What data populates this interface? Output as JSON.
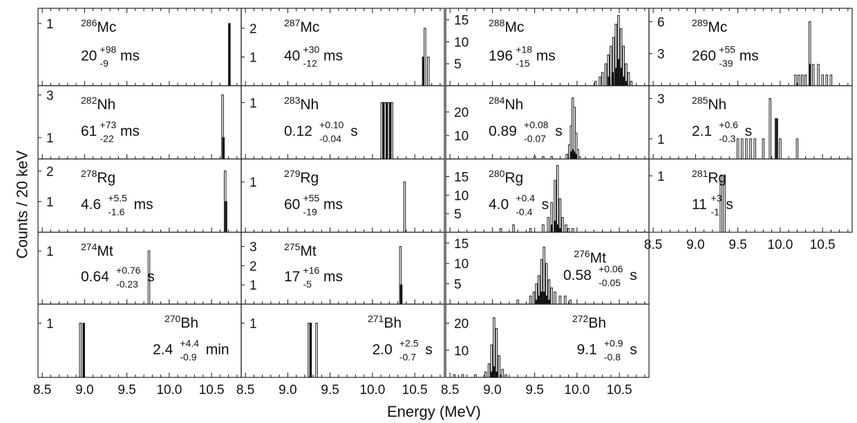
{
  "figure": {
    "ylabel": "Counts / 20 keV",
    "xlabel": "Energy (MeV)"
  },
  "chart_data": {
    "type": "bar",
    "xlim": [
      8.45,
      10.85
    ],
    "xticks": [
      "8.5",
      "9.0",
      "9.5",
      "10.0",
      "10.5"
    ],
    "ylabel": "Counts / 20 keV",
    "xlabel": "Energy (MeV)",
    "grid": false,
    "panels": [
      {
        "id": "286Mc",
        "row": 0,
        "col": 0,
        "mass": "286",
        "element": "Mc",
        "value": "20",
        "plus": "+98",
        "minus": "-9",
        "unit": "ms",
        "labelPos": "left",
        "ymax": 1.2,
        "yticks": [
          1
        ],
        "open": [],
        "filled": [
          [
            10.71,
            1
          ]
        ]
      },
      {
        "id": "287Mc",
        "row": 0,
        "col": 1,
        "mass": "287",
        "element": "Mc",
        "value": "40",
        "plus": "+30",
        "minus": "-12",
        "unit": "ms",
        "labelPos": "left",
        "ymax": 2.6,
        "yticks": [
          1,
          2
        ],
        "open": [
          [
            10.62,
            2
          ],
          [
            10.66,
            1
          ]
        ],
        "filled": [
          [
            10.6,
            1
          ]
        ]
      },
      {
        "id": "288Mc",
        "row": 0,
        "col": 2,
        "mass": "288Mc",
        "element": "Mc",
        "value": "196",
        "plus": "+18",
        "minus": "-15",
        "unit": "ms",
        "labelPos": "left",
        "ymax": 17,
        "yticks": [
          5,
          10,
          15
        ],
        "open": [
          [
            10.22,
            1
          ],
          [
            10.27,
            2
          ],
          [
            10.3,
            3
          ],
          [
            10.34,
            5
          ],
          [
            10.37,
            7
          ],
          [
            10.4,
            9
          ],
          [
            10.43,
            11
          ],
          [
            10.46,
            14
          ],
          [
            10.49,
            16
          ],
          [
            10.52,
            13
          ],
          [
            10.55,
            9
          ],
          [
            10.58,
            5
          ],
          [
            10.61,
            3
          ],
          [
            10.64,
            1
          ]
        ],
        "filled": [
          [
            10.38,
            2
          ],
          [
            10.42,
            3
          ],
          [
            10.46,
            4
          ],
          [
            10.49,
            6
          ],
          [
            10.52,
            4
          ],
          [
            10.55,
            2
          ],
          [
            10.58,
            1
          ]
        ]
      },
      {
        "id": "289Mc",
        "row": 0,
        "col": 3,
        "mass": "289",
        "element": "Mc",
        "value": "260",
        "plus": "+55",
        "minus": "-39",
        "unit": "ms",
        "labelPos": "left",
        "ymax": 7,
        "yticks": [
          3,
          6
        ],
        "open": [
          [
            10.18,
            1
          ],
          [
            10.22,
            1
          ],
          [
            10.26,
            1
          ],
          [
            10.3,
            1
          ],
          [
            10.35,
            6
          ],
          [
            10.39,
            2
          ],
          [
            10.45,
            2
          ],
          [
            10.5,
            1
          ],
          [
            10.55,
            1
          ],
          [
            10.6,
            1
          ]
        ],
        "filled": [
          [
            10.35,
            2
          ]
        ]
      },
      {
        "id": "282Nh",
        "row": 1,
        "col": 0,
        "mass": "282",
        "element": "Nh",
        "value": "61",
        "plus": "+73",
        "minus": "-22",
        "unit": "ms",
        "labelPos": "left",
        "ymax": 3.3,
        "yticks": [
          1,
          3
        ],
        "open": [
          [
            10.63,
            3
          ]
        ],
        "filled": [
          [
            10.64,
            1
          ]
        ]
      },
      {
        "id": "283Nh",
        "row": 1,
        "col": 1,
        "mass": "283",
        "element": "Nh",
        "value": "0.12",
        "plus": "+0.10",
        "minus": "-0.04",
        "unit": "s",
        "labelPos": "left",
        "ymax": 1.25,
        "yticks": [
          1
        ],
        "open": [
          [
            10.11,
            1
          ],
          [
            10.15,
            1
          ],
          [
            10.19,
            1
          ],
          [
            10.23,
            1
          ]
        ],
        "filled": [
          [
            10.13,
            1
          ],
          [
            10.17,
            1
          ],
          [
            10.21,
            1
          ]
        ]
      },
      {
        "id": "284Nh",
        "row": 1,
        "col": 2,
        "mass": "284",
        "element": "Nh",
        "value": "0.89",
        "plus": "+0.08",
        "minus": "-0.07",
        "unit": "s",
        "labelPos": "left",
        "ymax": 30,
        "yticks": [
          10,
          20
        ],
        "open": [
          [
            9.5,
            1
          ],
          [
            9.6,
            1
          ],
          [
            9.7,
            1
          ],
          [
            9.88,
            2
          ],
          [
            9.91,
            6
          ],
          [
            9.93,
            14
          ],
          [
            9.95,
            26
          ],
          [
            9.97,
            22
          ],
          [
            9.99,
            11
          ],
          [
            10.01,
            4
          ],
          [
            10.03,
            1
          ]
        ],
        "filled": [
          [
            9.93,
            3
          ],
          [
            9.95,
            4
          ],
          [
            9.97,
            3
          ],
          [
            9.99,
            2
          ]
        ]
      },
      {
        "id": "285Nh",
        "row": 1,
        "col": 3,
        "mass": "285",
        "element": "Nh",
        "value": "2.1",
        "plus": "+0.6",
        "minus": "-0.3",
        "unit": "s",
        "labelPos": "left",
        "ymax": 3.5,
        "yticks": [
          1,
          3
        ],
        "open": [
          [
            9.5,
            1
          ],
          [
            9.55,
            1
          ],
          [
            9.6,
            1
          ],
          [
            9.65,
            1
          ],
          [
            9.7,
            1
          ],
          [
            9.8,
            1
          ],
          [
            9.88,
            3
          ],
          [
            9.95,
            2
          ],
          [
            10.0,
            1
          ],
          [
            10.2,
            1
          ]
        ],
        "filled": [
          [
            9.96,
            2
          ]
        ]
      },
      {
        "id": "278Rg",
        "row": 2,
        "col": 0,
        "mass": "278",
        "element": "Rg",
        "value": "4.6",
        "plus": "+5.5",
        "minus": "-1.6",
        "unit": "ms",
        "labelPos": "left",
        "ymax": 2.3,
        "yticks": [
          1,
          2
        ],
        "open": [
          [
            10.66,
            2
          ]
        ],
        "filled": [
          [
            10.67,
            1
          ]
        ]
      },
      {
        "id": "279Rg",
        "row": 2,
        "col": 1,
        "mass": "279",
        "element": "Rg",
        "value": "60",
        "plus": "+55",
        "minus": "-19",
        "unit": "ms",
        "labelPos": "left",
        "ymax": 1.4,
        "yticks": [
          1
        ],
        "open": [
          [
            10.38,
            1
          ]
        ],
        "filled": []
      },
      {
        "id": "280Rg",
        "row": 2,
        "col": 2,
        "mass": "280",
        "element": "Rg",
        "value": "4.0",
        "plus": "+0.4",
        "minus": "-0.4",
        "unit": "s",
        "labelPos": "left",
        "ymax": 19,
        "yticks": [
          5,
          10,
          15
        ],
        "open": [
          [
            9.1,
            1
          ],
          [
            9.25,
            2
          ],
          [
            9.45,
            1
          ],
          [
            9.6,
            2
          ],
          [
            9.66,
            4
          ],
          [
            9.7,
            8
          ],
          [
            9.74,
            14
          ],
          [
            9.77,
            18
          ],
          [
            9.8,
            9
          ],
          [
            9.83,
            4
          ],
          [
            9.87,
            2
          ],
          [
            9.9,
            1
          ],
          [
            9.95,
            1
          ]
        ],
        "filled": [
          [
            9.7,
            2
          ],
          [
            9.74,
            3
          ],
          [
            9.77,
            2
          ],
          [
            9.8,
            1
          ]
        ]
      },
      {
        "id": "281Rg",
        "row": 2,
        "col": 3,
        "mass": "281",
        "element": "Rg",
        "value": "11",
        "plus": "+3",
        "minus": "-1",
        "unit": "s",
        "labelPos": "left",
        "ymax": 1.25,
        "yticks": [
          1
        ],
        "open": [
          [
            9.3,
            1
          ],
          [
            9.34,
            1
          ]
        ],
        "filled": []
      },
      {
        "id": "274Mt",
        "row": 3,
        "col": 0,
        "mass": "274",
        "element": "Mt",
        "value": "0.64",
        "plus": "+0.76",
        "minus": "-0.23",
        "unit": "s",
        "labelPos": "left",
        "ymax": 1.3,
        "yticks": [
          1
        ],
        "open": [
          [
            9.76,
            1
          ]
        ],
        "filled": []
      },
      {
        "id": "275Mt",
        "row": 3,
        "col": 1,
        "mass": "275",
        "element": "Mt",
        "value": "17",
        "plus": "+16",
        "minus": "-5",
        "unit": "ms",
        "labelPos": "left",
        "ymax": 3.6,
        "yticks": [
          1,
          2,
          3
        ],
        "open": [
          [
            10.33,
            3
          ]
        ],
        "filled": [
          [
            10.34,
            1
          ]
        ]
      },
      {
        "id": "276Mt",
        "row": 3,
        "col": 2,
        "mass": "276",
        "element": "Mt",
        "value": "0.58",
        "plus": "+0.06",
        "minus": "-0.05",
        "unit": "s",
        "labelPos": "right",
        "ymax": 17,
        "yticks": [
          5,
          10,
          15
        ],
        "open": [
          [
            9.3,
            1
          ],
          [
            9.45,
            2
          ],
          [
            9.49,
            3
          ],
          [
            9.52,
            5
          ],
          [
            9.55,
            7
          ],
          [
            9.58,
            11
          ],
          [
            9.61,
            14
          ],
          [
            9.64,
            10
          ],
          [
            9.67,
            6
          ],
          [
            9.7,
            4
          ],
          [
            9.74,
            3
          ],
          [
            9.8,
            2
          ],
          [
            9.86,
            2
          ],
          [
            9.92,
            1
          ]
        ],
        "filled": [
          [
            9.52,
            1
          ],
          [
            9.55,
            2
          ],
          [
            9.58,
            3
          ],
          [
            9.61,
            3
          ],
          [
            9.64,
            2
          ],
          [
            9.67,
            1
          ]
        ]
      },
      {
        "id": "270Bh",
        "row": 4,
        "col": 0,
        "mass": "270",
        "element": "Bh",
        "value": "2.4",
        "plus": "+4.4",
        "minus": "-0.9",
        "unit": "min",
        "labelPos": "right",
        "ymax": 1.3,
        "yticks": [
          1
        ],
        "open": [
          [
            8.95,
            1
          ]
        ],
        "filled": [
          [
            8.99,
            1
          ]
        ]
      },
      {
        "id": "271Bh",
        "row": 4,
        "col": 1,
        "mass": "271",
        "element": "Bh",
        "value": "2.0",
        "plus": "+2.5",
        "minus": "-0.7",
        "unit": "s",
        "labelPos": "right",
        "ymax": 1.3,
        "yticks": [
          1
        ],
        "open": [
          [
            9.25,
            1
          ],
          [
            9.34,
            1
          ]
        ],
        "filled": [
          [
            9.27,
            1
          ]
        ]
      },
      {
        "id": "272Bh",
        "row": 4,
        "col": 2,
        "mass": "272",
        "element": "Bh",
        "value": "9.1",
        "plus": "+0.9",
        "minus": "-0.8",
        "unit": "s",
        "labelPos": "right",
        "ymax": 26,
        "yticks": [
          10,
          20
        ],
        "open": [
          [
            8.55,
            1
          ],
          [
            8.65,
            1
          ],
          [
            8.8,
            1
          ],
          [
            8.92,
            2
          ],
          [
            8.96,
            5
          ],
          [
            8.99,
            12
          ],
          [
            9.02,
            22
          ],
          [
            9.05,
            18
          ],
          [
            9.08,
            8
          ],
          [
            9.12,
            3
          ],
          [
            9.16,
            1
          ]
        ],
        "filled": [
          [
            8.99,
            2
          ],
          [
            9.02,
            4
          ],
          [
            9.05,
            2
          ]
        ]
      }
    ]
  }
}
